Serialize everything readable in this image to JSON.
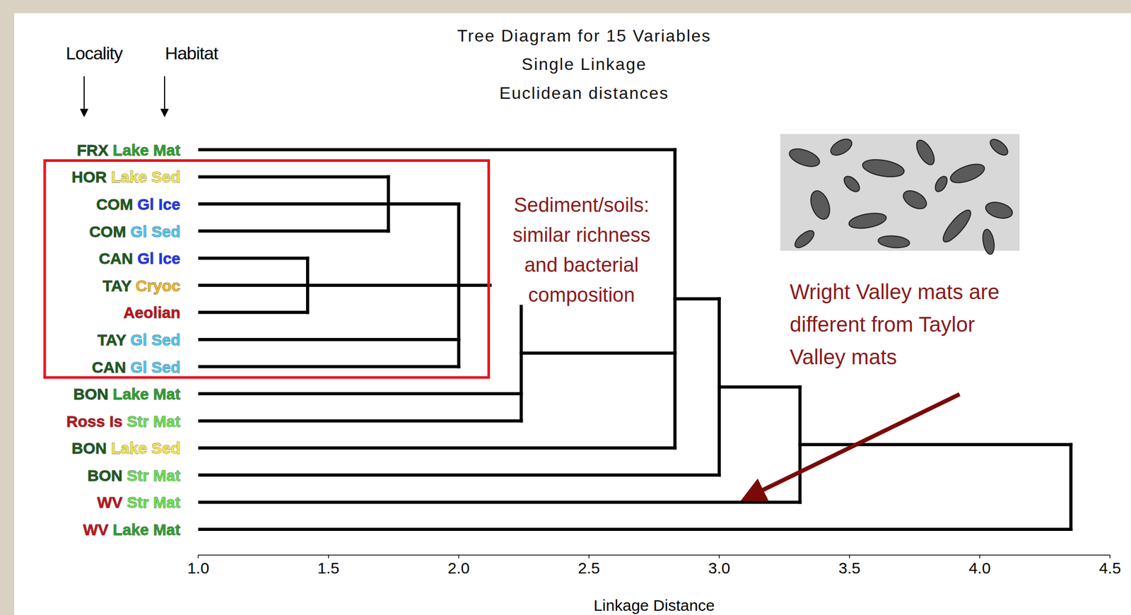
{
  "chart_data": {
    "type": "dendrogram",
    "title": "Tree Diagram for 15 Variables",
    "subtitle": [
      "Single Linkage",
      "Euclidean distances"
    ],
    "x_label": "Linkage Distance",
    "xlim": [
      1.0,
      4.5
    ],
    "xticks": [
      {
        "value": 1,
        "label": "1.0"
      },
      1.5,
      {
        "value": 2,
        "label": "2.0"
      },
      2.5,
      {
        "value": 3,
        "label": "3.0"
      },
      3.5,
      {
        "value": 4,
        "label": "4.0"
      },
      4.5
    ],
    "column_heads": [
      "Locality",
      "Habitat"
    ],
    "leaves": [
      {
        "locality": "FRX",
        "locality_color": "#1e5a1e",
        "habitat": "Lake Mat",
        "habitat_color": "#2e9e2e"
      },
      {
        "locality": "HOR",
        "locality_color": "#1e5a1e",
        "habitat": "Lake Sed",
        "habitat_color": "#f2e64a"
      },
      {
        "locality": "COM",
        "locality_color": "#1e5a1e",
        "habitat": "Gl Ice",
        "habitat_color": "#2436e8"
      },
      {
        "locality": "COM",
        "locality_color": "#1e5a1e",
        "habitat": "Gl Sed",
        "habitat_color": "#4cc6f0"
      },
      {
        "locality": "CAN",
        "locality_color": "#1e5a1e",
        "habitat": "Gl Ice",
        "habitat_color": "#2436e8"
      },
      {
        "locality": "TAY",
        "locality_color": "#1e5a1e",
        "habitat": "Cryoc",
        "habitat_color": "#f2b51e"
      },
      {
        "locality": "Aeolian",
        "locality_color": "#c0141a"
      },
      {
        "locality": "TAY",
        "locality_color": "#1e5a1e",
        "habitat": "Gl Sed",
        "habitat_color": "#4cc6f0"
      },
      {
        "locality": "CAN",
        "locality_color": "#1e5a1e",
        "habitat": "Gl Sed",
        "habitat_color": "#4cc6f0"
      },
      {
        "locality": "BON",
        "locality_color": "#1e5a1e",
        "habitat": "Lake Mat",
        "habitat_color": "#2e9e2e"
      },
      {
        "locality": "Ross Is",
        "locality_color": "#c0141a",
        "habitat": "Str Mat",
        "habitat_color": "#66e04e"
      },
      {
        "locality": "BON",
        "locality_color": "#1e5a1e",
        "habitat": "Lake Sed",
        "habitat_color": "#f2e64a"
      },
      {
        "locality": "BON",
        "locality_color": "#1e5a1e",
        "habitat": "Str Mat",
        "habitat_color": "#66e04e"
      },
      {
        "locality": "WV",
        "locality_color": "#c0141a",
        "habitat": "Str Mat",
        "habitat_color": "#66e04e"
      },
      {
        "locality": "WV",
        "locality_color": "#c0141a",
        "habitat": "Lake Mat",
        "habitat_color": "#2e9e2e"
      }
    ],
    "merges": [
      {
        "distance": 1.42,
        "children": [
          {
            "leaf": 4
          },
          {
            "leaf": 5
          },
          {
            "leaf": 6
          }
        ]
      },
      {
        "distance": 1.73,
        "children": [
          {
            "leaf": 1
          },
          {
            "leaf": 2
          },
          {
            "leaf": 3
          }
        ]
      },
      {
        "distance": 2.0,
        "children": [
          {
            "merge": 1
          },
          {
            "merge": 0
          },
          {
            "leaf": 7
          },
          {
            "leaf": 8
          }
        ]
      },
      {
        "distance": 2.24,
        "children": [
          {
            "merge": 2
          },
          {
            "leaf": 9
          },
          {
            "leaf": 10
          }
        ]
      },
      {
        "distance": 2.83,
        "children": [
          {
            "leaf": 0
          },
          {
            "merge": 3
          },
          {
            "leaf": 11
          }
        ]
      },
      {
        "distance": 3.0,
        "children": [
          {
            "merge": 4
          },
          {
            "leaf": 12
          }
        ]
      },
      {
        "distance": 3.31,
        "children": [
          {
            "merge": 5
          },
          {
            "leaf": 13
          }
        ]
      },
      {
        "distance": 4.35,
        "children": [
          {
            "merge": 6
          },
          {
            "leaf": 14
          }
        ]
      }
    ],
    "annotations": [
      {
        "lines": [
          "Sediment/soils:",
          "similar richness",
          "and bacterial",
          "composition"
        ],
        "color": "#8b1a1a",
        "highlight_leaves": [
          1,
          8
        ],
        "highlight_color": "#e8141e"
      },
      {
        "lines": [
          "Wright Valley mats are",
          "different from Taylor",
          "Valley mats"
        ],
        "color": "#8b1a1a",
        "arrow_to_leaf": 13,
        "arrow_color": "#7a0a0a"
      }
    ]
  }
}
